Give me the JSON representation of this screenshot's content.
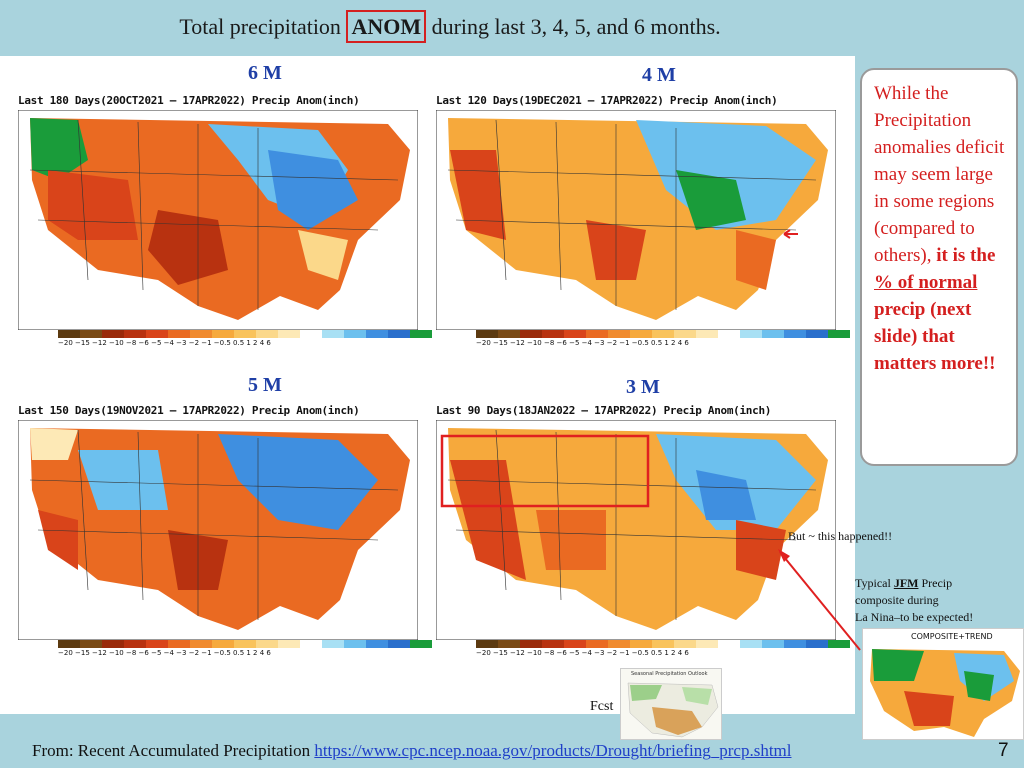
{
  "title": {
    "before": "Total precipitation ",
    "highlight": "ANOM",
    "after": " during last 3, 4, 5, and 6 months."
  },
  "maps": [
    {
      "period": "6 M",
      "title": "Last 180 Days(20OCT2021 – 17APR2022) Precip Anom(inch)"
    },
    {
      "period": "4 M",
      "title": "Last 120 Days(19DEC2021 – 17APR2022) Precip Anom(inch)"
    },
    {
      "period": "5 M",
      "title": "Last 150 Days(19NOV2021 – 17APR2022) Precip Anom(inch)"
    },
    {
      "period": "3 M",
      "title": "Last 90 Days(18JAN2022 – 17APR2022) Precip Anom(inch)"
    }
  ],
  "colorbar_labels": "−20 −15 −12 −10  −8  −6  −5  −4  −3  −2  −1 −0.5 0.5  1   2   4   6",
  "colorbar_colors": [
    "#5c3a10",
    "#7a4a15",
    "#9a2a0a",
    "#b83210",
    "#d9441a",
    "#ea6a22",
    "#f08a2e",
    "#f6a93c",
    "#f9c35c",
    "#fbd88a",
    "#fde9b6",
    "#ffffff",
    "#a8e0f4",
    "#6cc0ee",
    "#3f8fe0",
    "#2a6fcc",
    "#1a9c3a"
  ],
  "side_box": {
    "line1": "While the Precipitation anomalies deficit  may seem large in some regions (compared to others), ",
    "bold1": "it is the ",
    "underline": "% of normal",
    "bold2": " precip (next slide) that matters more!!"
  },
  "notes": {
    "happened": "But ~ this happened!!",
    "typical_pre": "Typical ",
    "typical_jfm": "JFM",
    "typical_post": " Precip",
    "typical_line2": "composite during",
    "typical_line3": "La Nina–to be expected!"
  },
  "inset_title": "COMPOSITE+TREND",
  "fcst_label": "Fcst",
  "fcst_inset_title": "Seasonal Precipitation Outlook",
  "footer": {
    "text": "From: Recent Accumulated Precipitation ",
    "link": "https://www.cpc.ncep.noaa.gov/products/Drought/briefing_prcp.shtml"
  },
  "page_number": "7"
}
